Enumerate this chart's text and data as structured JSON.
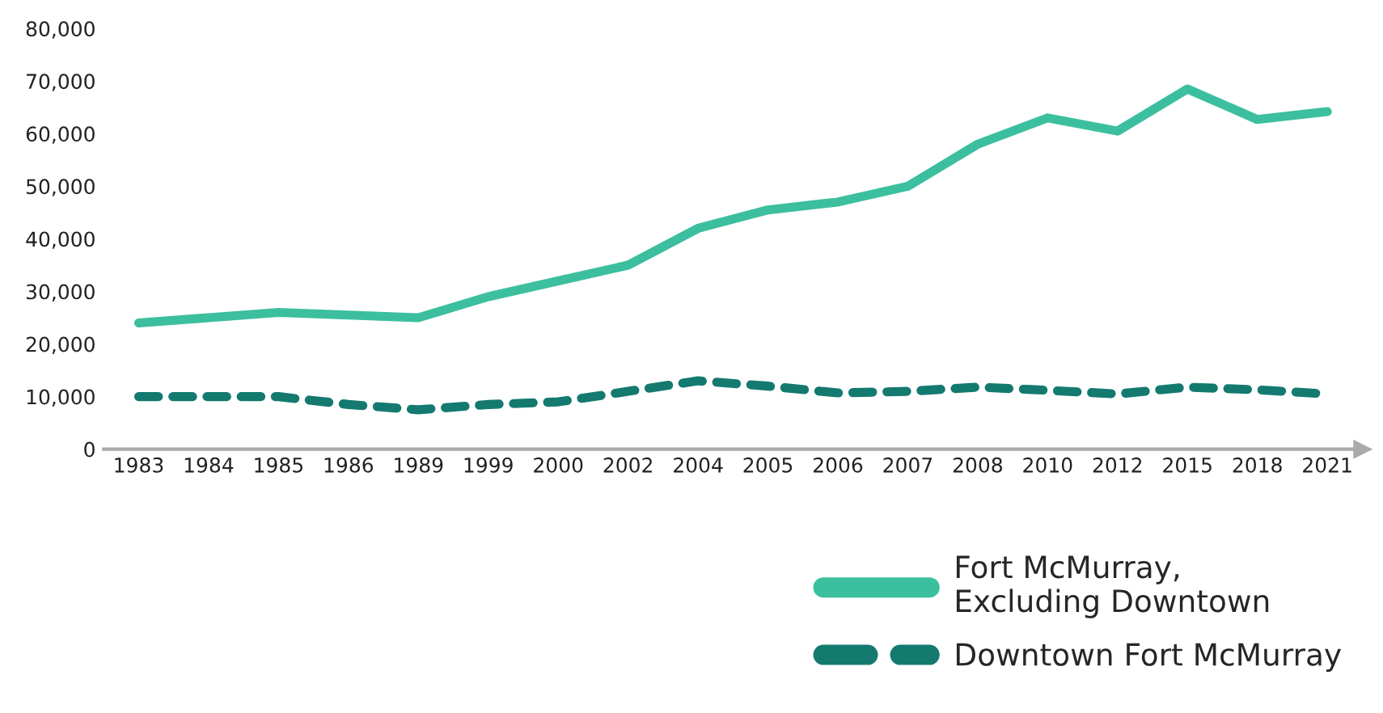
{
  "chart_data": {
    "type": "line",
    "categories": [
      "1983",
      "1984",
      "1985",
      "1986",
      "1989",
      "1999",
      "2000",
      "2002",
      "2004",
      "2005",
      "2006",
      "2007",
      "2008",
      "2010",
      "2012",
      "2015",
      "2018",
      "2021"
    ],
    "series": [
      {
        "name": "Fort McMurray,\nExcluding Downtown",
        "color": "#3cbf9f",
        "line_style": "solid",
        "values": [
          24000,
          25000,
          26000,
          25500,
          25000,
          29000,
          32000,
          35000,
          42000,
          45500,
          47000,
          50000,
          58000,
          63000,
          60500,
          68500,
          62700,
          64200
        ]
      },
      {
        "name": "Downtown Fort McMurray",
        "color": "#147a70",
        "line_style": "dashed",
        "values": [
          10000,
          10000,
          10000,
          8500,
          7500,
          8500,
          9000,
          11000,
          13000,
          12000,
          10700,
          11000,
          11800,
          11200,
          10500,
          11800,
          11300,
          10500
        ]
      }
    ],
    "ylim": [
      0,
      80000
    ],
    "yticks": [
      {
        "value": 0,
        "label": "0"
      },
      {
        "value": 10000,
        "label": "10,000"
      },
      {
        "value": 20000,
        "label": "20,000"
      },
      {
        "value": 30000,
        "label": "30,000"
      },
      {
        "value": 40000,
        "label": "40,000"
      },
      {
        "value": 50000,
        "label": "50,000"
      },
      {
        "value": 60000,
        "label": "60,000"
      },
      {
        "value": 70000,
        "label": "70,000"
      },
      {
        "value": 80000,
        "label": "80,000"
      }
    ],
    "grid": false,
    "legend": "bottom right",
    "marker": "none"
  }
}
